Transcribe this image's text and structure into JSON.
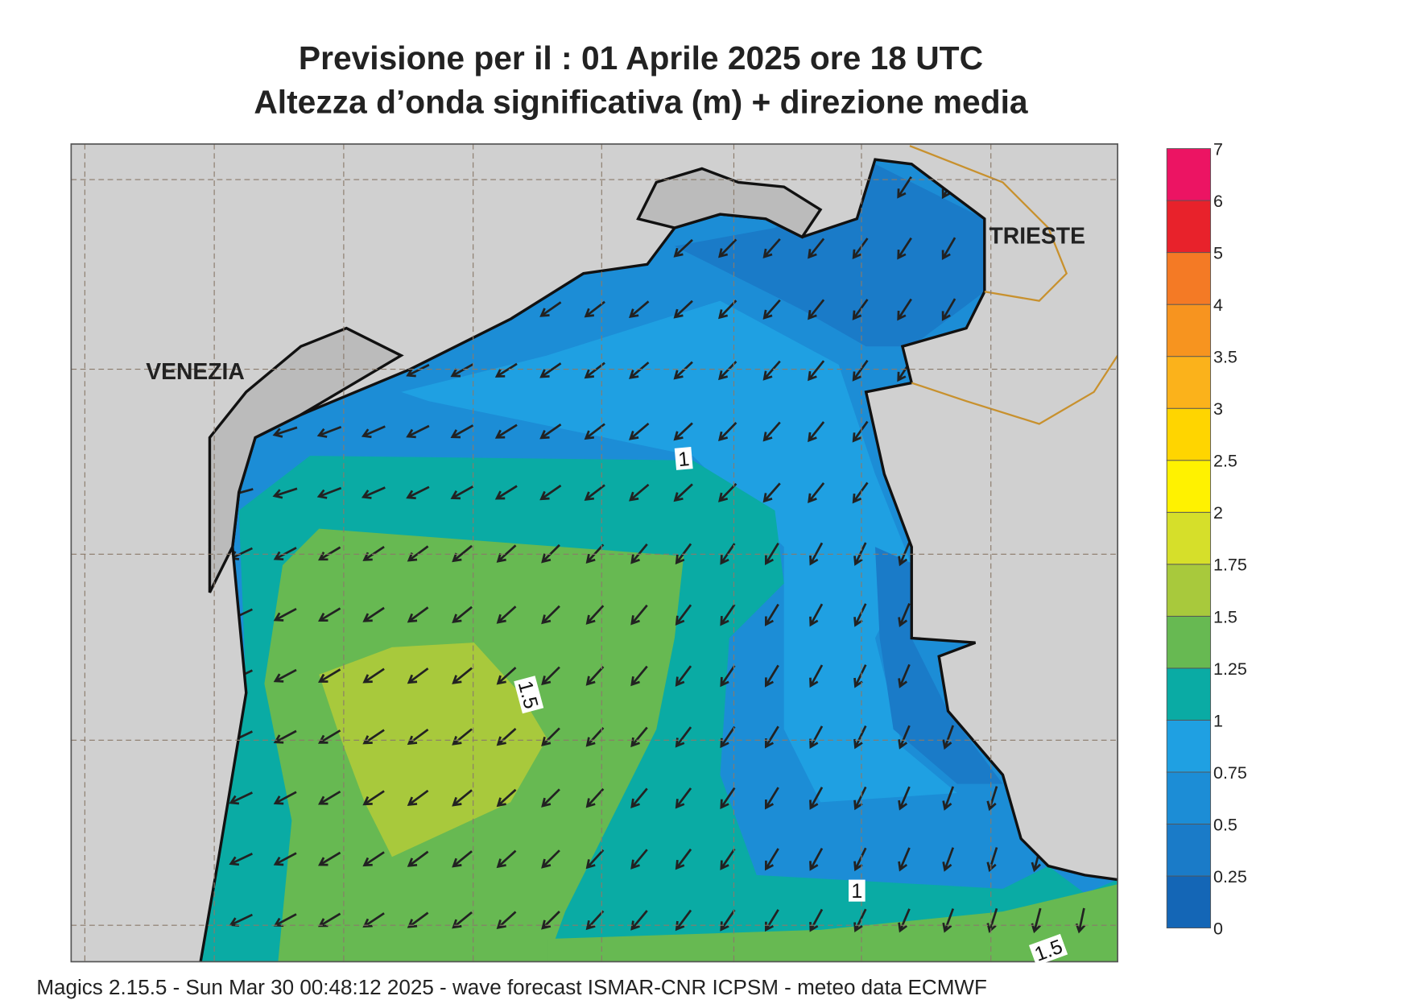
{
  "header": {
    "title_line_1": "Previsione per il  :  01   Aprile  2025   ore 18 UTC",
    "title_line_2": "Altezza d’onda significativa (m) + direzione media"
  },
  "places": [
    "VENEZIA",
    "TRIESTE"
  ],
  "contour_labels": [
    1,
    1.5,
    1,
    1.5
  ],
  "legend": {
    "levels": [
      0,
      0.25,
      0.5,
      0.75,
      1,
      1.25,
      1.5,
      1.75,
      2,
      2.5,
      3,
      3.5,
      4,
      5,
      6,
      7
    ],
    "colors": [
      "#1466b6",
      "#1a7bc8",
      "#1c8dd6",
      "#1fa0e2",
      "#0aaba4",
      "#67b952",
      "#a8c93c",
      "#d6df2a",
      "#fff200",
      "#ffd500",
      "#fbb21b",
      "#f7941f",
      "#f47a25",
      "#e8222b",
      "#ec1463"
    ]
  },
  "footer": "Magics 2.15.5 - Sun Mar 30 00:48:12 2025 - wave forecast  ISMAR-CNR  ICPSM - meteo data   ECMWF"
}
